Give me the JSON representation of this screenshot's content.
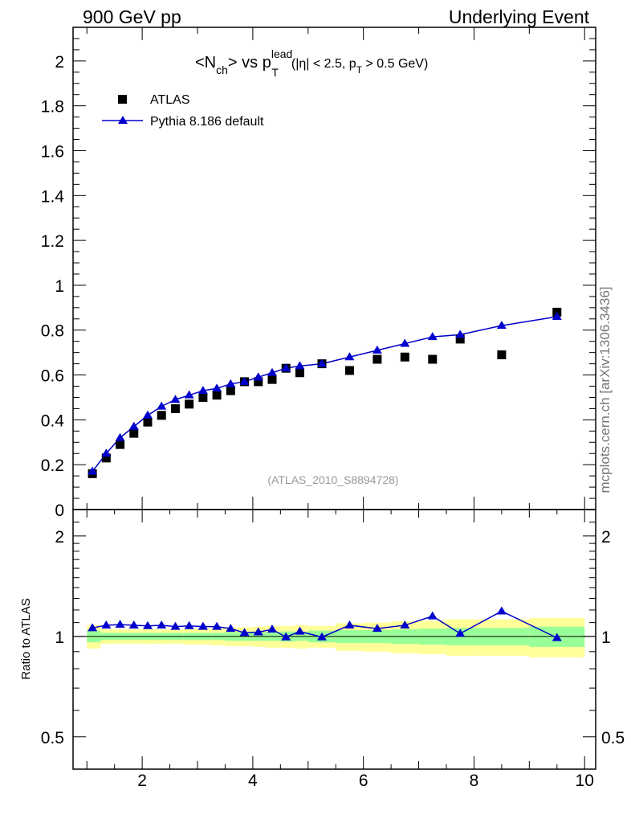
{
  "header": {
    "left": "900 GeV pp",
    "right": "Underlying Event"
  },
  "side_label": "mcplots.cern.ch [arXiv:1306.3436]",
  "watermark": "(ATLAS_2010_S8894728)",
  "title": {
    "main_prefix": "<N",
    "main_sub": "ch",
    "main_mid": "> vs p",
    "main_sup": "lead",
    "main_sub2": "T",
    "cond_prefix": "(|η| < 2.5, p",
    "cond_sub": "T",
    "cond_suffix": " > 0.5 GeV)"
  },
  "legend": {
    "atlas": "ATLAS",
    "pythia": "Pythia 8.186 default"
  },
  "colors": {
    "pythia": "#0000cc",
    "atlas": "#000000",
    "band_inner": "#99ff99",
    "band_outer": "#ffff99"
  },
  "chart_data": [
    {
      "type": "scatter",
      "title": "<Nch> vs pT lead (|η| < 2.5, pT > 0.5 GeV)",
      "xlim": [
        0.75,
        10.2
      ],
      "ylim": [
        0,
        2.15
      ],
      "y_ticks": [
        "0",
        "0.2",
        "0.4",
        "0.6",
        "0.8",
        "1",
        "1.2",
        "1.4",
        "1.6",
        "1.8",
        "2"
      ],
      "series": [
        {
          "name": "ATLAS",
          "marker": "square",
          "x": [
            1.1,
            1.35,
            1.6,
            1.85,
            2.1,
            2.35,
            2.6,
            2.85,
            3.1,
            3.35,
            3.6,
            3.85,
            4.1,
            4.35,
            4.6,
            4.85,
            5.25,
            5.75,
            6.25,
            6.75,
            7.25,
            7.75,
            8.5,
            9.5
          ],
          "y": [
            0.16,
            0.23,
            0.29,
            0.34,
            0.39,
            0.42,
            0.45,
            0.47,
            0.5,
            0.51,
            0.53,
            0.57,
            0.57,
            0.58,
            0.63,
            0.61,
            0.65,
            0.62,
            0.67,
            0.68,
            0.67,
            0.76,
            0.69,
            0.88
          ]
        },
        {
          "name": "Pythia 8.186 default",
          "marker": "triangle",
          "line": true,
          "x": [
            1.1,
            1.35,
            1.6,
            1.85,
            2.1,
            2.35,
            2.6,
            2.85,
            3.1,
            3.35,
            3.6,
            3.85,
            4.1,
            4.35,
            4.6,
            4.85,
            5.25,
            5.75,
            6.25,
            6.75,
            7.25,
            7.75,
            8.5,
            9.5
          ],
          "y": [
            0.17,
            0.25,
            0.32,
            0.37,
            0.42,
            0.46,
            0.49,
            0.51,
            0.53,
            0.54,
            0.56,
            0.57,
            0.59,
            0.61,
            0.63,
            0.64,
            0.65,
            0.68,
            0.71,
            0.74,
            0.77,
            0.78,
            0.82,
            0.86
          ]
        }
      ]
    },
    {
      "type": "scatter",
      "ylabel": "Ratio to ATLAS",
      "xlim": [
        0.75,
        10.2
      ],
      "ylim": [
        0.4,
        2.4
      ],
      "y_log": true,
      "x_ticks": [
        "2",
        "4",
        "6",
        "8",
        "10"
      ],
      "y_ticks": [
        "0.5",
        "1",
        "2"
      ],
      "reference_line": 1,
      "band_edges_x": [
        1,
        1.25,
        1.5,
        1.75,
        2,
        2.25,
        2.5,
        2.75,
        3,
        3.25,
        3.5,
        3.75,
        4,
        4.25,
        4.5,
        4.75,
        5,
        5.5,
        6,
        6.5,
        7,
        7.5,
        8,
        9,
        10
      ],
      "band_inner": {
        "lo": [
          0.96,
          0.975,
          0.975,
          0.975,
          0.975,
          0.975,
          0.975,
          0.975,
          0.975,
          0.975,
          0.97,
          0.97,
          0.97,
          0.97,
          0.965,
          0.97,
          0.96,
          0.955,
          0.955,
          0.95,
          0.945,
          0.94,
          0.94,
          0.93
        ],
        "hi": [
          1.04,
          1.025,
          1.025,
          1.025,
          1.025,
          1.025,
          1.025,
          1.025,
          1.025,
          1.025,
          1.03,
          1.03,
          1.03,
          1.03,
          1.035,
          1.03,
          1.04,
          1.045,
          1.045,
          1.05,
          1.055,
          1.06,
          1.06,
          1.07
        ]
      },
      "band_outer": {
        "lo": [
          0.92,
          0.95,
          0.95,
          0.95,
          0.95,
          0.95,
          0.95,
          0.945,
          0.945,
          0.94,
          0.935,
          0.935,
          0.93,
          0.925,
          0.925,
          0.92,
          0.925,
          0.905,
          0.9,
          0.89,
          0.885,
          0.875,
          0.875,
          0.865
        ],
        "hi": [
          1.08,
          1.05,
          1.05,
          1.05,
          1.05,
          1.05,
          1.05,
          1.055,
          1.055,
          1.06,
          1.065,
          1.065,
          1.07,
          1.075,
          1.075,
          1.08,
          1.075,
          1.095,
          1.1,
          1.11,
          1.115,
          1.125,
          1.125,
          1.135
        ]
      },
      "series": [
        {
          "name": "Pythia 8.186 default",
          "marker": "triangle",
          "line": true,
          "x": [
            1.1,
            1.35,
            1.6,
            1.85,
            2.1,
            2.35,
            2.6,
            2.85,
            3.1,
            3.35,
            3.6,
            3.85,
            4.1,
            4.35,
            4.6,
            4.85,
            5.25,
            5.75,
            6.25,
            6.75,
            7.25,
            7.75,
            8.5,
            9.5
          ],
          "y": [
            1.06,
            1.08,
            1.085,
            1.08,
            1.075,
            1.08,
            1.07,
            1.075,
            1.07,
            1.07,
            1.055,
            1.025,
            1.03,
            1.05,
            0.995,
            1.035,
            0.995,
            1.08,
            1.055,
            1.08,
            1.15,
            1.02,
            1.19,
            0.99
          ]
        }
      ]
    }
  ]
}
